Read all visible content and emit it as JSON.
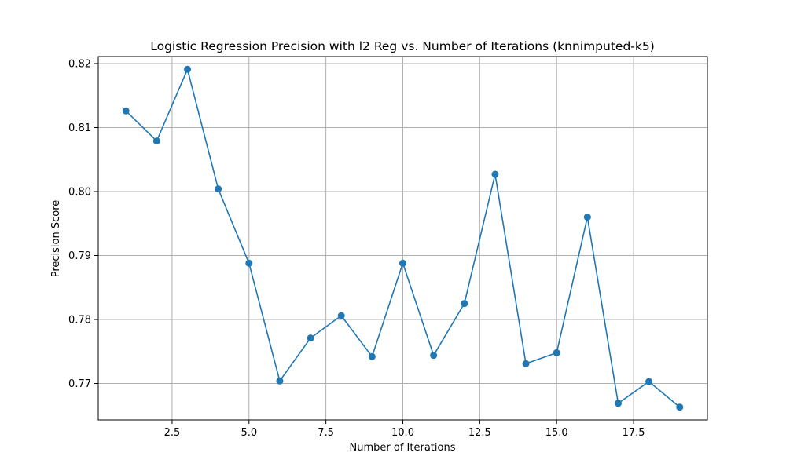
{
  "chart_data": {
    "type": "line",
    "title": "Logistic Regression Precision with l2 Reg vs. Number of Iterations (knnimputed-k5)",
    "xlabel": "Number of Iterations",
    "ylabel": "Precision Score",
    "x": [
      1,
      2,
      3,
      4,
      5,
      6,
      7,
      8,
      9,
      10,
      11,
      12,
      13,
      14,
      15,
      16,
      17,
      18,
      19
    ],
    "series": [
      {
        "values": [
          0.8126,
          0.8079,
          0.8191,
          0.8004,
          0.7888,
          0.7704,
          0.7771,
          0.7806,
          0.7742,
          0.7888,
          0.7744,
          0.7825,
          0.8027,
          0.7731,
          0.7748,
          0.796,
          0.7669,
          0.7703,
          0.7663
        ],
        "color": "#1f77b4"
      }
    ],
    "xlim": [
      0.1,
      19.9
    ],
    "ylim": [
      0.7643,
      0.8211
    ],
    "xticks": [
      2.5,
      5.0,
      7.5,
      10.0,
      12.5,
      15.0,
      17.5
    ],
    "xtick_labels": [
      "2.5",
      "5.0",
      "7.5",
      "10.0",
      "12.5",
      "15.0",
      "17.5"
    ],
    "yticks": [
      0.77,
      0.78,
      0.79,
      0.8,
      0.81,
      0.82
    ],
    "ytick_labels": [
      "0.77",
      "0.78",
      "0.79",
      "0.80",
      "0.81",
      "0.82"
    ],
    "grid": true,
    "markers": "circle",
    "line_color": "#1f77b4",
    "grid_color": "#b0b0b0"
  }
}
